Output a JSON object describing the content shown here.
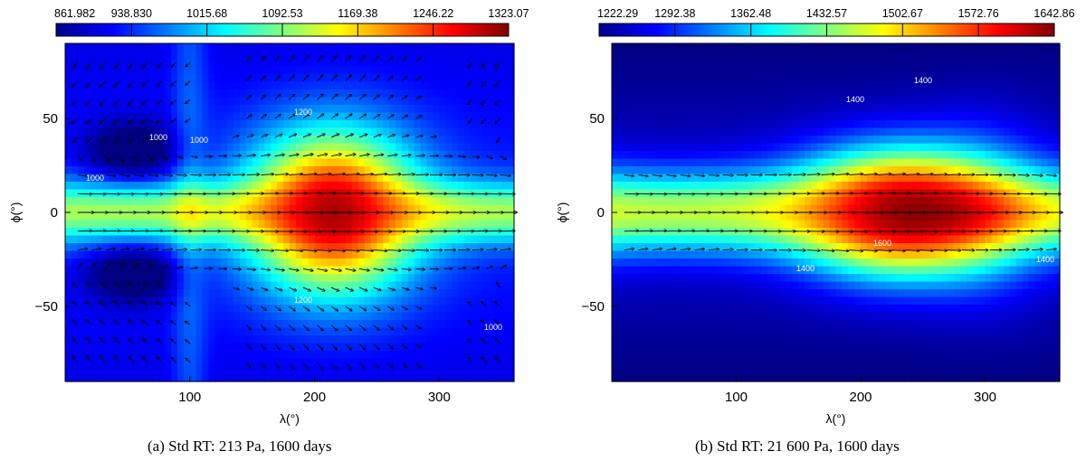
{
  "chart_data": [
    {
      "type": "heatmap",
      "caption": "(a) Std RT: 213 Pa, 1600 days",
      "xlabel": "λ(°)",
      "ylabel": "ϕ(°)",
      "xlim": [
        0,
        360
      ],
      "ylim": [
        -90,
        90
      ],
      "xticks": [
        100,
        200,
        300
      ],
      "yticks": [
        50,
        0,
        -50
      ],
      "ytick_labels": [
        "50",
        "0",
        "−50"
      ],
      "colorbar": {
        "min": 861.982,
        "max": 1323.07,
        "tick_values": [
          861.982,
          938.83,
          1015.68,
          1092.53,
          1169.38,
          1246.22,
          1323.07
        ],
        "tick_labels": [
          "861.982",
          "938.830",
          "1015.68",
          "1092.53",
          "1169.38",
          "1246.22",
          "1323.07"
        ],
        "colormap": "jet"
      },
      "contour_labels": [
        "1000",
        "1000",
        "1000",
        "1200",
        "1200",
        "1000"
      ],
      "hot_spot_center": [
        215,
        0
      ],
      "overlay": "wind vectors"
    },
    {
      "type": "heatmap",
      "caption": "(b) Std RT: 21 600 Pa, 1600 days",
      "xlabel": "λ(°)",
      "ylabel": "ϕ(°)",
      "xlim": [
        0,
        360
      ],
      "ylim": [
        -90,
        90
      ],
      "xticks": [
        100,
        200,
        300
      ],
      "yticks": [
        50,
        0,
        -50
      ],
      "ytick_labels": [
        "50",
        "0",
        "−50"
      ],
      "colorbar": {
        "min": 1222.29,
        "max": 1642.86,
        "tick_values": [
          1222.29,
          1292.38,
          1362.48,
          1432.57,
          1502.67,
          1572.76,
          1642.86
        ],
        "tick_labels": [
          "1222.29",
          "1292.38",
          "1362.48",
          "1432.57",
          "1502.67",
          "1572.76",
          "1642.86"
        ],
        "colormap": "jet"
      },
      "contour_labels": [
        "1400",
        "1400",
        "1600",
        "1400",
        "1400"
      ],
      "hot_spot_center": [
        230,
        0
      ],
      "overlay": "wind vectors"
    }
  ]
}
